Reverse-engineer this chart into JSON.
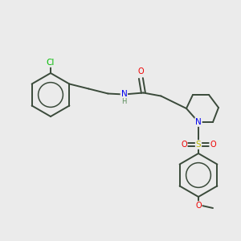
{
  "background_color": "#ebebeb",
  "bond_color": "#3a4a3a",
  "atom_colors": {
    "Cl": "#00bb00",
    "N": "#0000ee",
    "O": "#ee0000",
    "S": "#bbbb00",
    "H": "#558855",
    "C": "#3a4a3a"
  },
  "font_size": 7.0,
  "figsize": [
    3.0,
    3.0
  ],
  "dpi": 100
}
